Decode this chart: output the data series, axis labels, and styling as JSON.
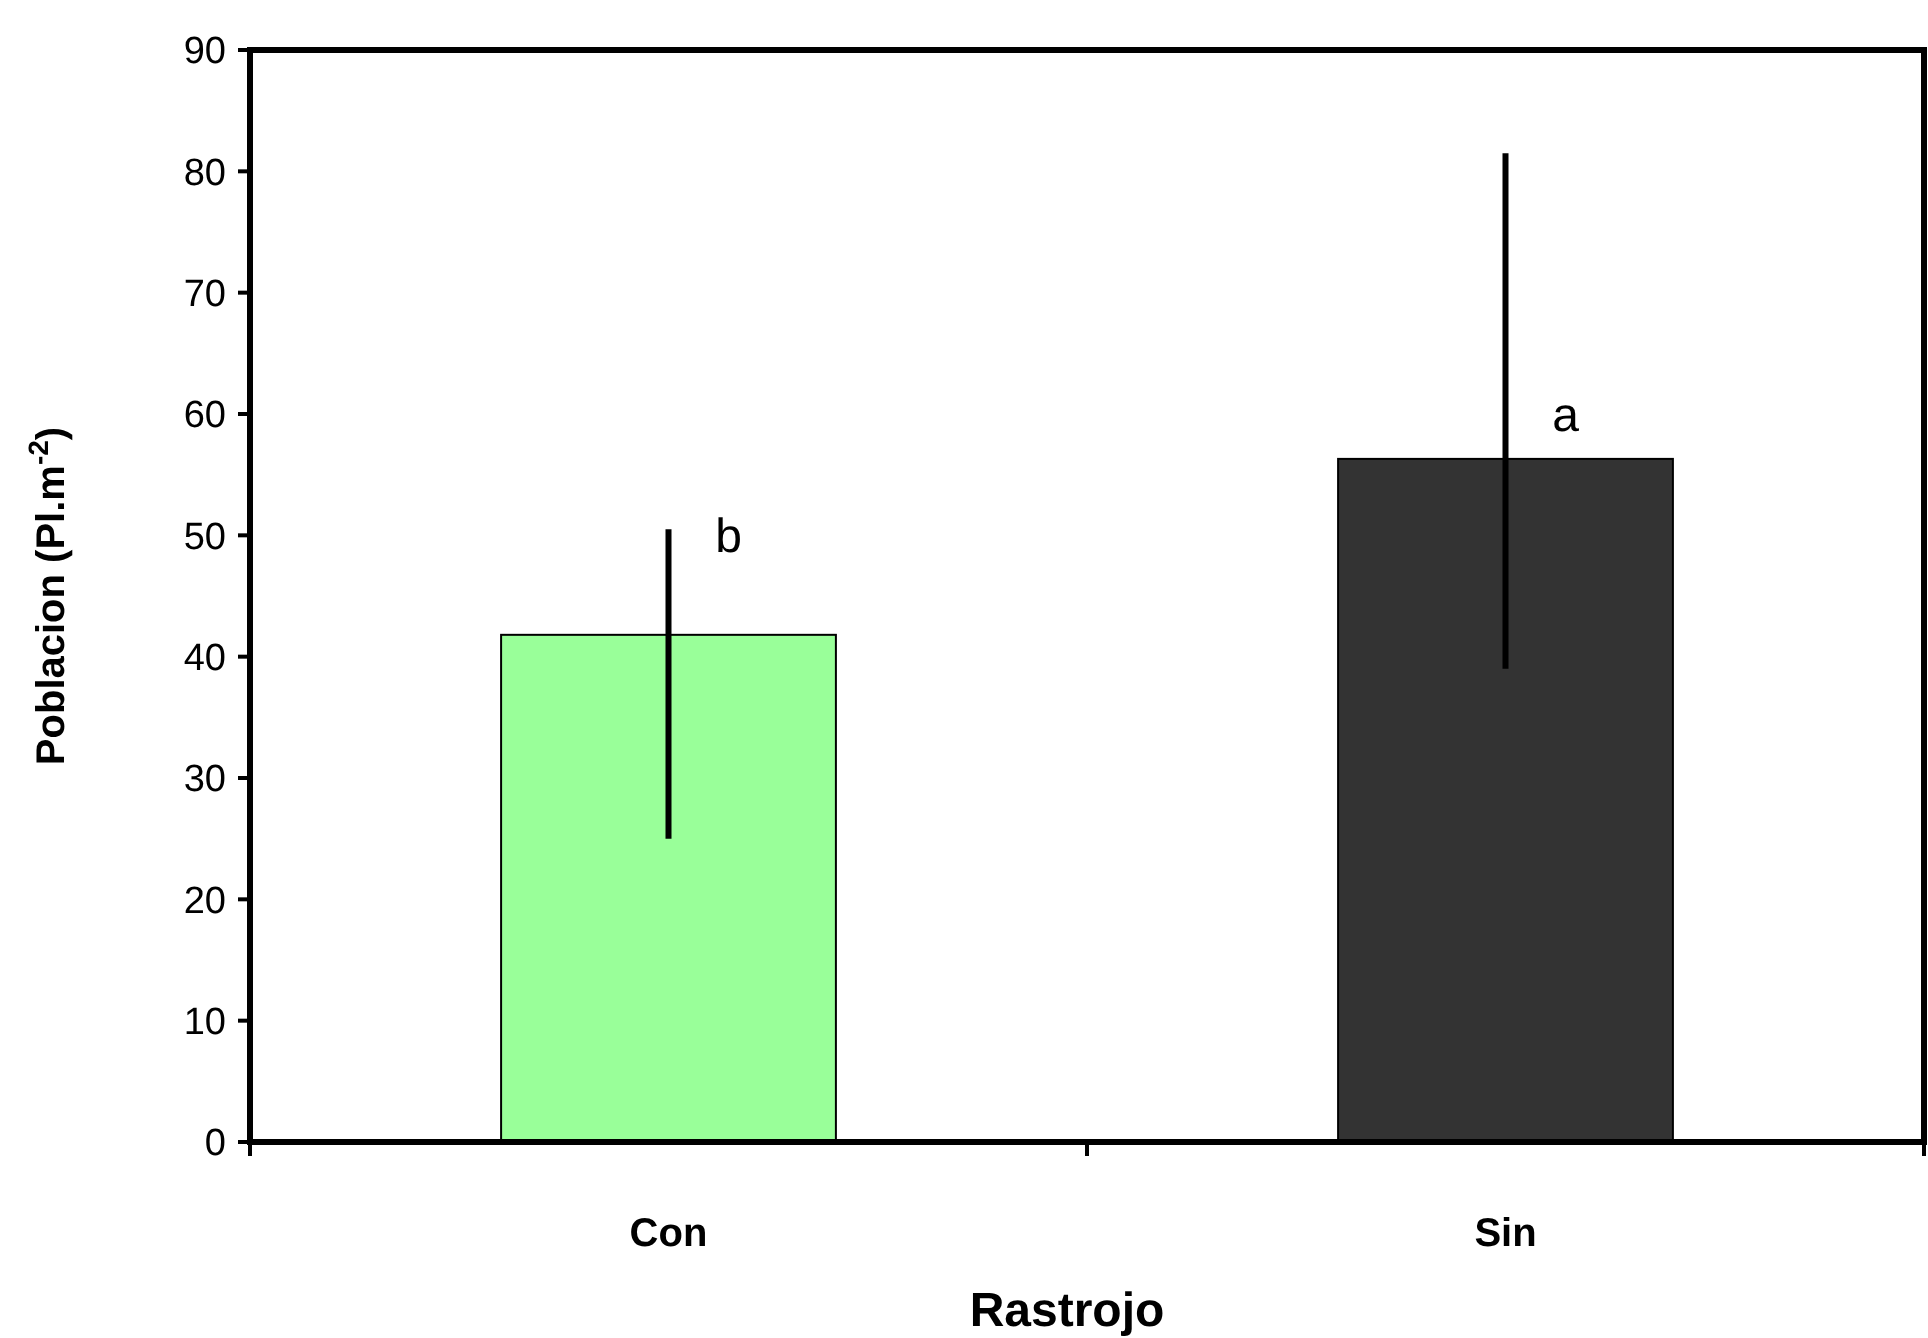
{
  "chart_data": {
    "type": "bar",
    "xlabel": "Rastrojo",
    "ylabel": "Poblacion (Pl.m$^{-2}$)",
    "categories": [
      "Con",
      "Sin"
    ],
    "values": [
      41.8,
      56.3
    ],
    "colors": [
      "#99ff99",
      "#333333"
    ],
    "errors": [
      [
        25,
        50.5
      ],
      [
        39,
        81.5
      ]
    ],
    "ylim": [
      0,
      90
    ],
    "yticks": [
      0,
      10,
      20,
      30,
      40,
      50,
      60,
      70,
      80,
      90
    ],
    "annotations": [
      {
        "text": "b",
        "x": "Con",
        "y": 50
      },
      {
        "text": "a",
        "x": "Sin",
        "y": 60
      }
    ],
    "grid": false
  }
}
